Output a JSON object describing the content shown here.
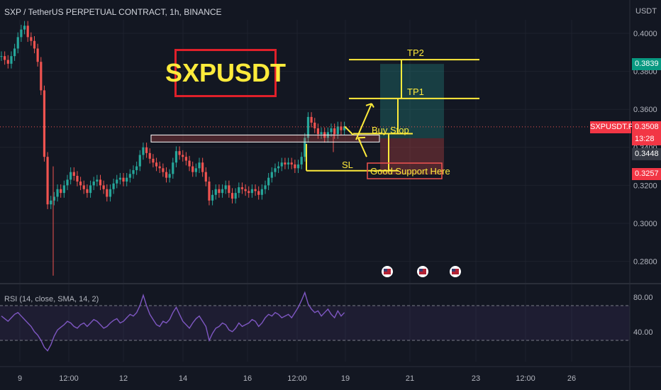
{
  "header": {
    "title": "SXP / TetherUS PERPETUAL CONTRACT, 1h, BINANCE",
    "currency": "USDT",
    "rsi_label": "RSI (14, close, SMA, 14, 2)"
  },
  "price_tags": {
    "symbol": "SXPUSDT.P",
    "current": "0.3508",
    "countdown": "13:28",
    "tp2": "0.3839",
    "entry": "0.3448",
    "sl": "0.3257"
  },
  "colors": {
    "background": "#131722",
    "up": "#26a69a",
    "down": "#ef5350",
    "annotation": "#ffeb3b",
    "rsi": "#7e57c2",
    "title_border": "#e0202a"
  },
  "chart_data": [
    {
      "type": "candlestick",
      "title": "SXP / TetherUS PERPETUAL CONTRACT, 1h, BINANCE",
      "xlabel": "",
      "ylabel": "USDT",
      "x_ticks": [
        "9",
        "12:00",
        "12",
        "14",
        "16",
        "12:00",
        "19",
        "21",
        "23",
        "12:00",
        "26"
      ],
      "y_ticks": [
        "0.4000",
        "0.3800",
        "0.3600",
        "0.3400",
        "0.3200",
        "0.3000",
        "0.2800"
      ],
      "ylim": [
        0.27,
        0.41
      ],
      "grid": true,
      "series": [
        {
          "name": "SXPUSDT",
          "values": [
            0.388,
            0.386,
            0.384,
            0.388,
            0.392,
            0.398,
            0.402,
            0.404,
            0.398,
            0.396,
            0.392,
            0.385,
            0.37,
            0.335,
            0.31,
            0.312,
            0.314,
            0.318,
            0.316,
            0.32,
            0.323,
            0.327,
            0.325,
            0.322,
            0.32,
            0.318,
            0.316,
            0.32,
            0.322,
            0.323,
            0.32,
            0.318,
            0.314,
            0.318,
            0.321,
            0.323,
            0.324,
            0.322,
            0.324,
            0.326,
            0.328,
            0.33,
            0.336,
            0.34,
            0.337,
            0.334,
            0.332,
            0.33,
            0.329,
            0.327,
            0.324,
            0.326,
            0.332,
            0.338,
            0.336,
            0.335,
            0.333,
            0.33,
            0.327,
            0.329,
            0.332,
            0.327,
            0.322,
            0.312,
            0.315,
            0.318,
            0.316,
            0.318,
            0.32,
            0.316,
            0.313,
            0.316,
            0.319,
            0.318,
            0.317,
            0.316,
            0.318,
            0.317,
            0.315,
            0.318,
            0.32,
            0.324,
            0.327,
            0.329,
            0.33,
            0.332,
            0.331,
            0.332,
            0.331,
            0.329,
            0.331,
            0.335,
            0.345,
            0.356,
            0.353,
            0.35,
            0.347,
            0.348,
            0.345,
            0.348,
            0.35,
            0.347,
            0.351,
            0.349,
            0.351
          ]
        }
      ],
      "annotations": [
        "SXPUSDT",
        "TP2",
        "TP1",
        "Buy Stop",
        "SL",
        "Good Support Here"
      ]
    },
    {
      "type": "line",
      "title": "RSI (14, close, SMA, 14, 2)",
      "y_ticks": [
        "80.00",
        "40.00"
      ],
      "ylim": [
        20,
        90
      ],
      "band": [
        30,
        70
      ],
      "series": [
        {
          "name": "RSI",
          "values": [
            58,
            55,
            52,
            56,
            60,
            62,
            58,
            54,
            50,
            46,
            40,
            36,
            30,
            22,
            18,
            25,
            35,
            42,
            45,
            48,
            52,
            50,
            46,
            44,
            48,
            50,
            46,
            50,
            54,
            52,
            48,
            44,
            46,
            50,
            53,
            55,
            50,
            52,
            56,
            60,
            58,
            62,
            70,
            82,
            70,
            60,
            54,
            48,
            46,
            52,
            50,
            54,
            62,
            68,
            60,
            52,
            48,
            44,
            50,
            55,
            58,
            52,
            46,
            30,
            38,
            44,
            46,
            50,
            48,
            42,
            40,
            44,
            50,
            46,
            48,
            50,
            54,
            52,
            46,
            50,
            56,
            60,
            58,
            62,
            60,
            56,
            58,
            60,
            56,
            62,
            68,
            76,
            85,
            72,
            66,
            62,
            64,
            58,
            62,
            66,
            60,
            56,
            64,
            58,
            62
          ]
        }
      ]
    }
  ]
}
